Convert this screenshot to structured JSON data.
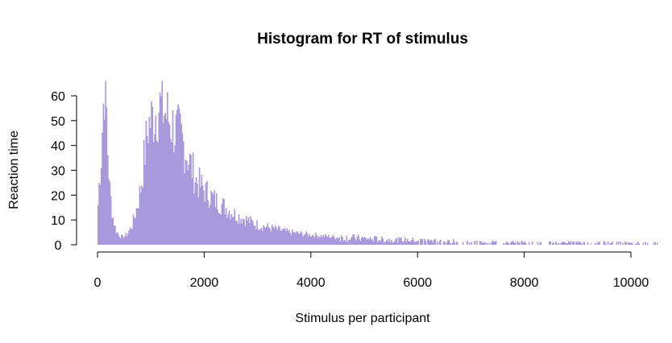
{
  "chart_data": {
    "type": "bar",
    "title": "Histogram for RT of stimulus",
    "xlabel": "Stimulus per participant",
    "ylabel": "Reaction time",
    "xlim": [
      0,
      10500
    ],
    "ylim": [
      0,
      66
    ],
    "x_ticks": [
      "0",
      "2000",
      "4000",
      "6000",
      "8000",
      "10000"
    ],
    "y_ticks": [
      "0",
      "10",
      "20",
      "30",
      "40",
      "50",
      "60"
    ],
    "bar_color": "#a898dc",
    "bin_width": 20,
    "grid": false,
    "legend": "none",
    "profile": [
      {
        "x": 0,
        "y": 12
      },
      {
        "x": 40,
        "y": 28
      },
      {
        "x": 70,
        "y": 36
      },
      {
        "x": 100,
        "y": 52
      },
      {
        "x": 130,
        "y": 66
      },
      {
        "x": 160,
        "y": 60
      },
      {
        "x": 190,
        "y": 38
      },
      {
        "x": 230,
        "y": 22
      },
      {
        "x": 280,
        "y": 12
      },
      {
        "x": 340,
        "y": 6
      },
      {
        "x": 400,
        "y": 4
      },
      {
        "x": 470,
        "y": 3
      },
      {
        "x": 550,
        "y": 4
      },
      {
        "x": 650,
        "y": 8
      },
      {
        "x": 750,
        "y": 16
      },
      {
        "x": 820,
        "y": 24
      },
      {
        "x": 880,
        "y": 36
      },
      {
        "x": 950,
        "y": 48
      },
      {
        "x": 1050,
        "y": 52
      },
      {
        "x": 1150,
        "y": 56
      },
      {
        "x": 1250,
        "y": 54
      },
      {
        "x": 1350,
        "y": 50
      },
      {
        "x": 1450,
        "y": 46
      },
      {
        "x": 1550,
        "y": 44
      },
      {
        "x": 1650,
        "y": 38
      },
      {
        "x": 1750,
        "y": 32
      },
      {
        "x": 1850,
        "y": 26
      },
      {
        "x": 2000,
        "y": 22
      },
      {
        "x": 2200,
        "y": 18
      },
      {
        "x": 2400,
        "y": 15
      },
      {
        "x": 2600,
        "y": 12
      },
      {
        "x": 2800,
        "y": 10
      },
      {
        "x": 3000,
        "y": 8
      },
      {
        "x": 3300,
        "y": 6.5
      },
      {
        "x": 3600,
        "y": 5
      },
      {
        "x": 4000,
        "y": 4
      },
      {
        "x": 4500,
        "y": 3
      },
      {
        "x": 5000,
        "y": 2.5
      },
      {
        "x": 5500,
        "y": 2
      },
      {
        "x": 6000,
        "y": 1.8
      },
      {
        "x": 7000,
        "y": 1.3
      },
      {
        "x": 8000,
        "y": 1.1
      },
      {
        "x": 9000,
        "y": 1
      },
      {
        "x": 10500,
        "y": 0.8
      }
    ]
  }
}
